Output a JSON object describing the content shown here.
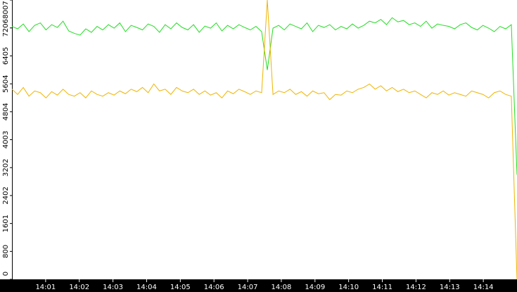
{
  "chart_data": {
    "type": "line",
    "xlim": [
      "14:00",
      "14:15"
    ],
    "xticks": [
      "14:01",
      "14:02",
      "14:03",
      "14:04",
      "14:05",
      "14:06",
      "14:07",
      "14:08",
      "14:09",
      "14:10",
      "14:11",
      "14:12",
      "14:13",
      "14:14"
    ],
    "ylim": [
      0,
      8007
    ],
    "yticks": [
      0,
      800,
      1601,
      2402,
      3202,
      4003,
      4804,
      5604,
      6405,
      7206,
      8007
    ],
    "series": [
      {
        "color": "#22dd22",
        "values": [
          7250,
          7180,
          7320,
          7100,
          7280,
          7350,
          7150,
          7300,
          7220,
          7400,
          7120,
          7050,
          7000,
          7180,
          7080,
          7250,
          7150,
          7300,
          7200,
          7350,
          7100,
          7280,
          7220,
          7150,
          7320,
          7250,
          7080,
          7300,
          7180,
          7350,
          7220,
          7150,
          7300,
          7080,
          7260,
          7200,
          7350,
          7120,
          7280,
          7180,
          7300,
          7220,
          7150,
          7250,
          7100,
          6000,
          7200,
          7280,
          7150,
          7320,
          7250,
          7180,
          7350,
          7100,
          7280,
          7220,
          7300,
          7150,
          7250,
          7180,
          7320,
          7200,
          7280,
          7400,
          7350,
          7450,
          7300,
          7500,
          7380,
          7420,
          7300,
          7350,
          7250,
          7400,
          7200,
          7320,
          7280,
          7250,
          7180,
          7300,
          7350,
          7220,
          7150,
          7280,
          7200,
          7100,
          7250,
          7180,
          7300,
          3000
        ]
      },
      {
        "color": "#f0b400",
        "values": [
          5450,
          5300,
          5500,
          5250,
          5400,
          5350,
          5200,
          5380,
          5280,
          5450,
          5300,
          5250,
          5350,
          5200,
          5400,
          5300,
          5250,
          5350,
          5280,
          5400,
          5320,
          5450,
          5380,
          5500,
          5350,
          5600,
          5400,
          5450,
          5300,
          5500,
          5400,
          5350,
          5450,
          5300,
          5400,
          5280,
          5350,
          5200,
          5400,
          5320,
          5450,
          5380,
          5300,
          5400,
          5350,
          8007,
          5300,
          5400,
          5350,
          5450,
          5300,
          5380,
          5250,
          5400,
          5320,
          5350,
          5150,
          5300,
          5280,
          5400,
          5350,
          5450,
          5500,
          5600,
          5450,
          5550,
          5400,
          5500,
          5380,
          5450,
          5350,
          5400,
          5300,
          5200,
          5350,
          5300,
          5400,
          5280,
          5350,
          5300,
          5250,
          5400,
          5350,
          5300,
          5200,
          5350,
          5400,
          5300,
          5250,
          0
        ]
      }
    ]
  }
}
